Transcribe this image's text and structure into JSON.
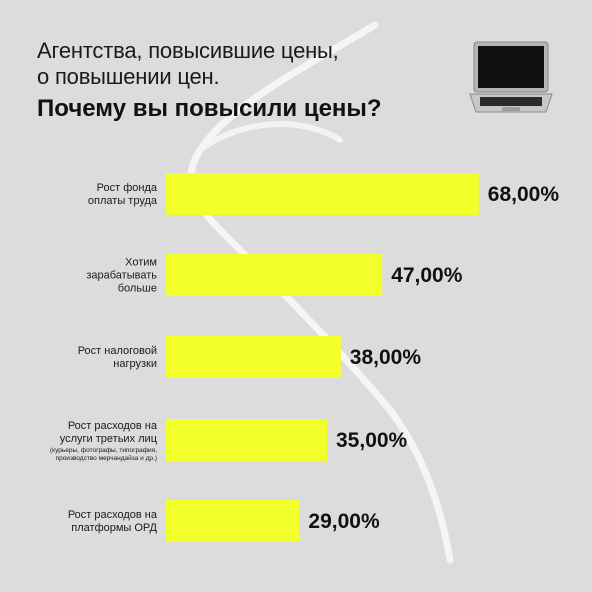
{
  "header": {
    "title_line1": "Агентства, повысившие цены,",
    "title_line2": "о повышении цен.",
    "question": "Почему вы повысили цены?"
  },
  "decor": {
    "icon": "laptop-icon"
  },
  "colors": {
    "bar": "#f2ff2a",
    "background": "#dcdcdc",
    "text": "#111111"
  },
  "chart_data": {
    "type": "bar",
    "orientation": "horizontal",
    "title": "Почему вы повысили цены?",
    "xlim": [
      0,
      100
    ],
    "categories": [
      {
        "lines": [
          "Рост фонда",
          "оплаты труда"
        ],
        "note": []
      },
      {
        "lines": [
          "Хотим",
          "зарабатывать",
          "больше"
        ],
        "note": []
      },
      {
        "lines": [
          "Рост налоговой",
          "нагрузки"
        ],
        "note": []
      },
      {
        "lines": [
          "Рост расходов на",
          "услуги третьих лиц"
        ],
        "note": [
          "(курьеры, фотографы, типография,",
          "производство мерчандайза и др.)"
        ]
      },
      {
        "lines": [
          "Рост расходов на",
          "платформы ОРД"
        ],
        "note": []
      }
    ],
    "values": [
      68,
      47,
      38,
      35,
      29
    ],
    "value_labels": [
      "68,00%",
      "47,00%",
      "38,00%",
      "35,00%",
      "29,00%"
    ]
  }
}
